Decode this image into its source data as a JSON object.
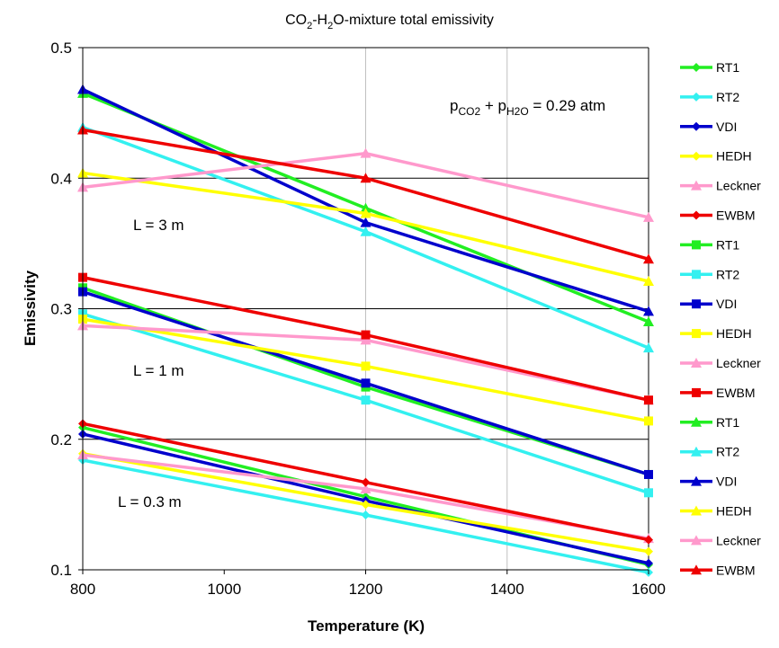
{
  "chart_data": {
    "type": "line",
    "title": {
      "main": "CO",
      "sub1": "2",
      "mid": "-H",
      "sub2": "2",
      "rest": "O-mixture total emissivity"
    },
    "xlabel": "Temperature (K)",
    "ylabel": "Emissivity",
    "xlim": [
      800,
      1600
    ],
    "ylim": [
      0.1,
      0.5
    ],
    "xticks": [
      "800",
      "1000",
      "1200",
      "1400",
      "1600"
    ],
    "yticks": [
      "0.1",
      "0.2",
      "0.3",
      "0.4",
      "0.5"
    ],
    "grid": {
      "horizontal": "black major lines",
      "vertical": "light gray at 1200 and 1400"
    },
    "legend_position": "right",
    "annotation_pressure": {
      "p": "p",
      "sub1": "CO2",
      "plus": " + p",
      "sub2": "H2O",
      "rest": " = 0.29 atm"
    },
    "group_labels": [
      "L = 3 m",
      "L = 1 m",
      "L = 0.3 m"
    ],
    "x": [
      800,
      1200,
      1600
    ],
    "series": [
      {
        "name": "RT1",
        "color": "#22ee22",
        "marker": "diamond",
        "values": [
          0.209,
          0.156,
          0.104
        ]
      },
      {
        "name": "RT2",
        "color": "#33f0f0",
        "marker": "diamond",
        "values": [
          0.184,
          0.142,
          0.098
        ]
      },
      {
        "name": "VDI",
        "color": "#0000cc",
        "marker": "diamond",
        "values": [
          0.204,
          0.153,
          0.105
        ]
      },
      {
        "name": "HEDH",
        "color": "#ffff00",
        "marker": "diamond",
        "values": [
          0.189,
          0.15,
          0.114
        ]
      },
      {
        "name": "Leckner",
        "color": "#ff99cc",
        "marker": "triangle",
        "values": [
          0.188,
          0.162,
          0.124
        ]
      },
      {
        "name": "EWBM",
        "color": "#ee0000",
        "marker": "diamond",
        "values": [
          0.212,
          0.167,
          0.123
        ]
      },
      {
        "name": "RT1",
        "color": "#22ee22",
        "marker": "square",
        "values": [
          0.316,
          0.24,
          0.173
        ]
      },
      {
        "name": "RT2",
        "color": "#33f0f0",
        "marker": "square",
        "values": [
          0.296,
          0.23,
          0.159
        ]
      },
      {
        "name": "VDI",
        "color": "#0000cc",
        "marker": "square",
        "values": [
          0.313,
          0.243,
          0.173
        ]
      },
      {
        "name": "HEDH",
        "color": "#ffff00",
        "marker": "square",
        "values": [
          0.292,
          0.256,
          0.214
        ]
      },
      {
        "name": "Leckner",
        "color": "#ff99cc",
        "marker": "triangle",
        "values": [
          0.287,
          0.276,
          0.23
        ]
      },
      {
        "name": "EWBM",
        "color": "#ee0000",
        "marker": "square",
        "values": [
          0.324,
          0.28,
          0.23
        ]
      },
      {
        "name": "RT1",
        "color": "#22ee22",
        "marker": "triangle",
        "values": [
          0.465,
          0.377,
          0.29
        ]
      },
      {
        "name": "RT2",
        "color": "#33f0f0",
        "marker": "triangle",
        "values": [
          0.439,
          0.359,
          0.27
        ]
      },
      {
        "name": "VDI",
        "color": "#0000cc",
        "marker": "triangle",
        "values": [
          0.468,
          0.366,
          0.298
        ]
      },
      {
        "name": "HEDH",
        "color": "#ffff00",
        "marker": "triangle",
        "values": [
          0.404,
          0.373,
          0.321
        ]
      },
      {
        "name": "Leckner",
        "color": "#ff99cc",
        "marker": "triangle",
        "values": [
          0.393,
          0.419,
          0.37
        ]
      },
      {
        "name": "EWBM",
        "color": "#ee0000",
        "marker": "triangle",
        "values": [
          0.437,
          0.4,
          0.338
        ]
      }
    ]
  }
}
